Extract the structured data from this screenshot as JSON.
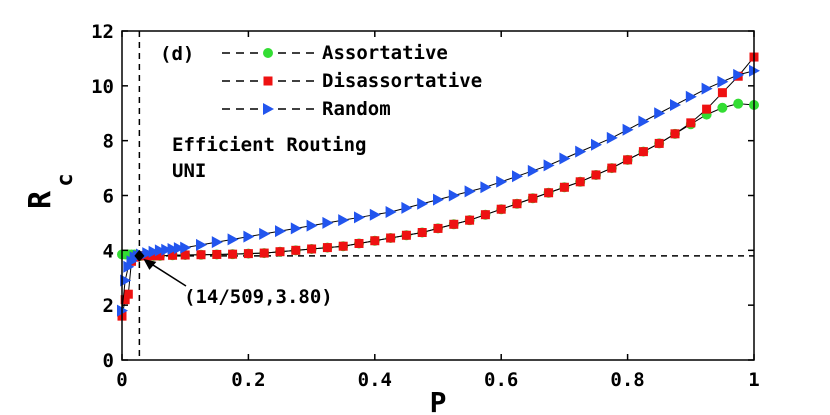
{
  "chart_data": {
    "type": "line",
    "panel_label": "(d)",
    "xlabel": "P",
    "ylabel_main": "R",
    "ylabel_sub": "c",
    "xlim": [
      0,
      1
    ],
    "ylim": [
      0,
      12
    ],
    "xticks": [
      0,
      0.2,
      0.4,
      0.6,
      0.8,
      1
    ],
    "xtick_labels": [
      "0",
      "0.2",
      "0.4",
      "0.6",
      "0.8",
      "1"
    ],
    "yticks": [
      0,
      2,
      4,
      6,
      8,
      10,
      12
    ],
    "ytick_labels": [
      "0",
      "2",
      "4",
      "6",
      "8",
      "10",
      "12"
    ],
    "grid": false,
    "legend_position": "top-left",
    "annotation_lines": [
      "Efficient Routing",
      "UNI"
    ],
    "reference_point": {
      "x": 0.0275,
      "y": 3.8,
      "label": "(14/509,3.80)"
    },
    "series": [
      {
        "name": "Assortative",
        "color": "#33dd33",
        "marker": "circle",
        "x": [
          0.0,
          0.005,
          0.01,
          0.015,
          0.02,
          0.025,
          0.03,
          0.04,
          0.05,
          0.06,
          0.08,
          0.1,
          0.125,
          0.15,
          0.175,
          0.2,
          0.225,
          0.25,
          0.275,
          0.3,
          0.325,
          0.35,
          0.375,
          0.4,
          0.425,
          0.45,
          0.475,
          0.5,
          0.525,
          0.55,
          0.575,
          0.6,
          0.625,
          0.65,
          0.675,
          0.7,
          0.725,
          0.75,
          0.775,
          0.8,
          0.825,
          0.85,
          0.875,
          0.9,
          0.925,
          0.95,
          0.975,
          1.0
        ],
        "y": [
          3.85,
          3.85,
          3.85,
          3.85,
          3.85,
          3.82,
          3.8,
          3.8,
          3.8,
          3.8,
          3.82,
          3.83,
          3.84,
          3.85,
          3.86,
          3.88,
          3.9,
          3.95,
          4.0,
          4.05,
          4.1,
          4.15,
          4.25,
          4.35,
          4.45,
          4.55,
          4.65,
          4.8,
          4.95,
          5.1,
          5.3,
          5.5,
          5.7,
          5.9,
          6.1,
          6.3,
          6.5,
          6.75,
          7.0,
          7.3,
          7.6,
          7.9,
          8.25,
          8.6,
          8.95,
          9.2,
          9.35,
          9.3
        ]
      },
      {
        "name": "Disassortative",
        "color": "#ee1111",
        "marker": "square",
        "x": [
          0.0,
          0.005,
          0.01,
          0.015,
          0.02,
          0.025,
          0.03,
          0.04,
          0.05,
          0.06,
          0.08,
          0.1,
          0.125,
          0.15,
          0.175,
          0.2,
          0.225,
          0.25,
          0.275,
          0.3,
          0.325,
          0.35,
          0.375,
          0.4,
          0.425,
          0.45,
          0.475,
          0.5,
          0.525,
          0.55,
          0.575,
          0.6,
          0.625,
          0.65,
          0.675,
          0.7,
          0.725,
          0.75,
          0.775,
          0.8,
          0.825,
          0.85,
          0.875,
          0.9,
          0.925,
          0.95,
          0.975,
          1.0
        ],
        "y": [
          1.6,
          2.2,
          2.4,
          3.6,
          3.75,
          3.8,
          3.8,
          3.8,
          3.8,
          3.8,
          3.82,
          3.83,
          3.84,
          3.85,
          3.86,
          3.88,
          3.9,
          3.95,
          4.0,
          4.05,
          4.1,
          4.15,
          4.25,
          4.35,
          4.45,
          4.55,
          4.65,
          4.8,
          4.95,
          5.1,
          5.3,
          5.5,
          5.7,
          5.9,
          6.1,
          6.3,
          6.5,
          6.75,
          7.0,
          7.3,
          7.6,
          7.9,
          8.25,
          8.65,
          9.15,
          9.75,
          10.35,
          11.05
        ]
      },
      {
        "name": "Random",
        "color": "#2255ee",
        "marker": "triangle-right",
        "x": [
          0.0,
          0.005,
          0.01,
          0.015,
          0.02,
          0.025,
          0.03,
          0.04,
          0.05,
          0.06,
          0.07,
          0.08,
          0.09,
          0.1,
          0.125,
          0.15,
          0.175,
          0.2,
          0.225,
          0.25,
          0.275,
          0.3,
          0.325,
          0.35,
          0.375,
          0.4,
          0.425,
          0.45,
          0.475,
          0.5,
          0.525,
          0.55,
          0.575,
          0.6,
          0.625,
          0.65,
          0.675,
          0.7,
          0.725,
          0.75,
          0.775,
          0.8,
          0.825,
          0.85,
          0.875,
          0.9,
          0.925,
          0.95,
          0.975,
          1.0
        ],
        "y": [
          1.8,
          2.9,
          3.4,
          3.6,
          3.75,
          3.8,
          3.85,
          3.9,
          3.95,
          4.0,
          4.02,
          4.05,
          4.08,
          4.1,
          4.2,
          4.3,
          4.4,
          4.5,
          4.6,
          4.7,
          4.8,
          4.9,
          5.0,
          5.1,
          5.2,
          5.3,
          5.4,
          5.55,
          5.7,
          5.85,
          6.0,
          6.15,
          6.3,
          6.5,
          6.7,
          6.9,
          7.1,
          7.35,
          7.6,
          7.85,
          8.1,
          8.4,
          8.7,
          9.0,
          9.3,
          9.6,
          9.9,
          10.15,
          10.4,
          10.55
        ]
      }
    ]
  }
}
